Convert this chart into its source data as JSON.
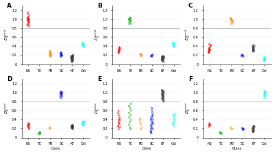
{
  "panels": [
    "A",
    "B",
    "C",
    "D",
    "E",
    "F"
  ],
  "xlabel": "Class",
  "categories": [
    "NS",
    "TE",
    "PB",
    "SC",
    "KF",
    "Ost"
  ],
  "colors": [
    "red",
    "#00aa00",
    "#ff8c00",
    "blue",
    "#333333",
    "cyan"
  ],
  "hline": 0.8,
  "ylim": [
    0,
    1.3
  ],
  "yticks": [
    0,
    0.2,
    0.4,
    0.6,
    0.8,
    1.0,
    1.2
  ],
  "background": "#ffffff",
  "panel_data": {
    "A": {
      "NS": [
        0.88,
        0.9,
        0.92,
        0.94,
        0.95,
        0.96,
        0.97,
        0.98,
        0.99,
        1.0,
        1.0,
        1.01,
        1.02,
        1.03,
        1.05,
        1.08,
        1.12,
        1.15,
        0.85,
        0.87
      ],
      "TE": [],
      "PB": [
        0.17,
        0.18,
        0.19,
        0.2,
        0.21,
        0.22,
        0.23,
        0.24,
        0.25,
        0.26,
        0.27,
        0.28,
        0.29
      ],
      "SC": [
        0.17,
        0.18,
        0.19,
        0.2,
        0.21,
        0.22,
        0.23,
        0.24,
        0.25,
        0.26
      ],
      "KF": [
        0.05,
        0.06,
        0.07,
        0.08,
        0.09,
        0.1,
        0.1,
        0.11,
        0.11,
        0.12,
        0.12,
        0.13,
        0.13,
        0.14,
        0.14,
        0.15,
        0.15,
        0.16,
        0.16,
        0.17,
        0.17,
        0.18,
        0.18,
        0.19,
        0.2
      ],
      "Ost": [
        0.38,
        0.4,
        0.41,
        0.42,
        0.43,
        0.44,
        0.45,
        0.46,
        0.47,
        0.48
      ]
    },
    "B": {
      "NS": [
        0.25,
        0.27,
        0.28,
        0.29,
        0.3,
        0.31,
        0.32,
        0.33,
        0.34,
        0.35,
        0.36,
        0.37,
        0.38
      ],
      "TE": [
        0.88,
        0.9,
        0.92,
        0.94,
        0.95,
        0.96,
        0.97,
        0.98,
        0.99,
        1.0,
        1.01,
        1.02,
        1.03
      ],
      "PB": [
        0.18,
        0.19,
        0.2,
        0.21,
        0.22,
        0.23
      ],
      "SC": [
        0.17,
        0.18,
        0.19,
        0.2,
        0.21
      ],
      "KF": [
        0.05,
        0.07,
        0.08,
        0.09,
        0.1,
        0.1,
        0.11,
        0.12,
        0.12,
        0.13,
        0.13,
        0.14,
        0.14,
        0.15,
        0.15,
        0.16,
        0.16,
        0.17,
        0.17,
        0.18
      ],
      "Ost": [
        0.38,
        0.4,
        0.41,
        0.42,
        0.43,
        0.44,
        0.45,
        0.46,
        0.47,
        0.48
      ]
    },
    "C": {
      "NS": [
        0.25,
        0.27,
        0.28,
        0.29,
        0.3,
        0.31,
        0.32,
        0.33,
        0.34,
        0.35,
        0.37,
        0.39,
        0.41,
        0.43,
        0.45
      ],
      "TE": [],
      "PB": [
        0.88,
        0.9,
        0.92,
        0.94,
        0.95,
        0.96,
        0.97,
        0.98,
        0.99,
        1.0,
        1.01,
        1.02
      ],
      "SC": [
        0.17,
        0.18,
        0.19,
        0.2,
        0.21
      ],
      "KF": [
        0.28,
        0.29,
        0.3,
        0.31,
        0.32,
        0.33,
        0.34,
        0.35,
        0.36,
        0.37,
        0.38,
        0.39,
        0.4,
        0.41,
        0.42
      ],
      "Ost": [
        0.07,
        0.08,
        0.09,
        0.1,
        0.11,
        0.12,
        0.13,
        0.14,
        0.15,
        0.16
      ]
    },
    "D": {
      "NS": [
        0.2,
        0.22,
        0.24,
        0.25,
        0.26,
        0.27,
        0.28,
        0.29,
        0.3,
        0.31,
        0.32
      ],
      "TE": [
        0.07,
        0.08,
        0.09,
        0.1,
        0.11,
        0.12
      ],
      "PB": [
        0.2,
        0.21,
        0.22
      ],
      "SC": [
        0.88,
        0.9,
        0.92,
        0.94,
        0.95,
        0.96,
        0.97,
        0.98,
        0.99,
        1.0,
        1.01,
        1.02
      ],
      "KF": [
        0.19,
        0.2,
        0.21,
        0.22,
        0.22,
        0.23,
        0.23,
        0.24,
        0.24,
        0.25,
        0.25,
        0.26,
        0.26,
        0.27,
        0.27
      ],
      "Ost": [
        0.27,
        0.28,
        0.29,
        0.3,
        0.31,
        0.32,
        0.33,
        0.34,
        0.35,
        0.36
      ]
    },
    "E": {
      "NS": [
        0.2,
        0.23,
        0.25,
        0.27,
        0.3,
        0.32,
        0.35,
        0.38,
        0.4,
        0.42,
        0.45,
        0.5,
        0.55,
        0.6
      ],
      "TE": [
        0.18,
        0.22,
        0.28,
        0.35,
        0.4,
        0.45,
        0.5,
        0.55,
        0.6,
        0.65,
        0.7,
        0.75
      ],
      "PB": [
        0.18,
        0.22,
        0.28,
        0.32,
        0.38,
        0.42
      ],
      "SC": [
        0.1,
        0.12,
        0.15,
        0.18,
        0.2,
        0.22,
        0.25,
        0.28,
        0.3,
        0.32,
        0.35,
        0.38,
        0.4,
        0.42,
        0.45,
        0.48,
        0.5,
        0.55,
        0.6,
        0.65
      ],
      "KF": [
        0.8,
        0.82,
        0.84,
        0.85,
        0.86,
        0.87,
        0.88,
        0.89,
        0.9,
        0.91,
        0.92,
        0.93,
        0.94,
        0.95,
        0.96,
        0.97,
        0.98,
        0.99,
        1.0,
        1.01,
        1.02,
        1.03,
        1.04,
        1.05
      ],
      "Ost": [
        0.25,
        0.28,
        0.3,
        0.32,
        0.35,
        0.38,
        0.4,
        0.42,
        0.45,
        0.48,
        0.5,
        0.52
      ]
    },
    "F": {
      "NS": [
        0.25,
        0.27,
        0.28,
        0.29,
        0.3,
        0.32
      ],
      "TE": [
        0.08,
        0.09,
        0.1,
        0.11,
        0.12
      ],
      "PB": [
        0.18,
        0.2,
        0.22
      ],
      "SC": [
        0.17,
        0.18,
        0.19,
        0.2,
        0.21
      ],
      "KF": [
        0.12,
        0.13,
        0.14,
        0.15,
        0.16,
        0.17,
        0.18,
        0.19,
        0.2,
        0.21,
        0.22,
        0.23,
        0.24,
        0.25,
        0.26
      ],
      "Ost": [
        0.88,
        0.9,
        0.92,
        0.94,
        0.95,
        0.96,
        0.97,
        0.98,
        0.99,
        1.0,
        1.01,
        1.02,
        1.03
      ]
    }
  }
}
